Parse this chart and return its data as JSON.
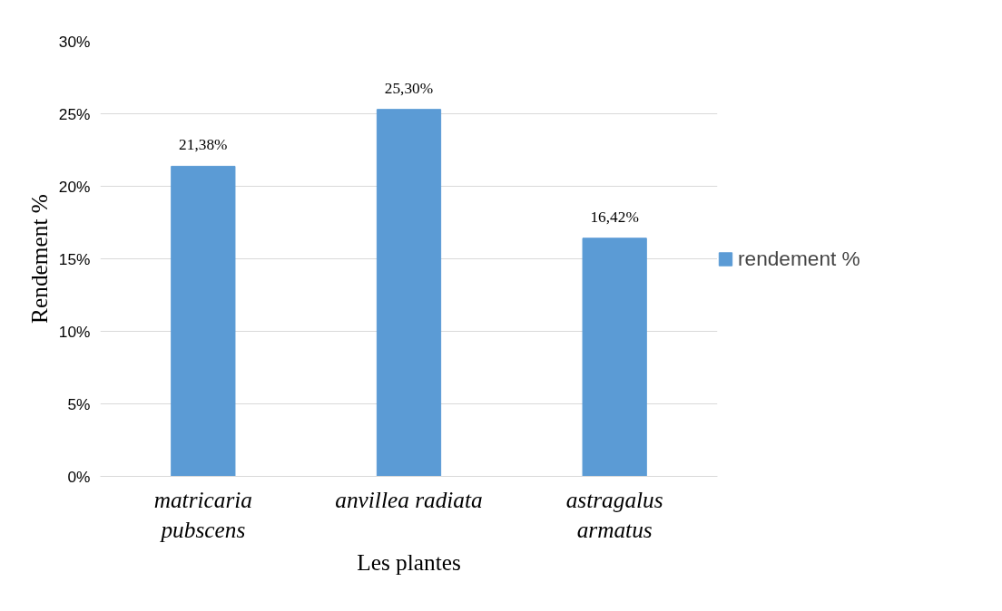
{
  "chart_data": {
    "type": "bar",
    "xlabel": "Les plantes",
    "ylabel": "Rendement %",
    "categories": [
      "matricaria pubscens",
      "anvillea radiata",
      "astragalus armatus"
    ],
    "series": [
      {
        "name": "rendement %",
        "color": "#5b9bd5",
        "values": [
          21.38,
          25.3,
          16.42
        ],
        "value_labels": [
          "21,38%",
          "25,30%",
          "16,42%"
        ]
      }
    ],
    "ylim": [
      0,
      30
    ],
    "yticks": [
      {
        "value": 0,
        "label": "0%"
      },
      {
        "value": 5,
        "label": "5%"
      },
      {
        "value": 10,
        "label": "10%"
      },
      {
        "value": 15,
        "label": "15%"
      },
      {
        "value": 20,
        "label": "20%"
      },
      {
        "value": 25,
        "label": "25%"
      },
      {
        "value": 30,
        "label": "30%"
      }
    ],
    "grid": "y",
    "legend": "right"
  }
}
